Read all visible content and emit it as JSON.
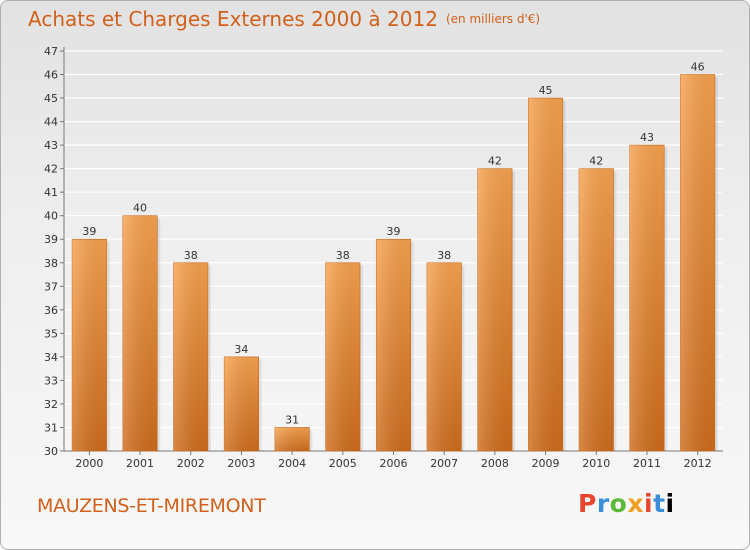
{
  "header": {
    "title": "Achats et Charges Externes 2000 à 2012",
    "unit": "(en milliers d'€)"
  },
  "footer": {
    "commune": "MAUZENS-ET-MIREMONT",
    "logo_letters": [
      "P",
      "r",
      "o",
      "x",
      "i",
      "t",
      "i"
    ]
  },
  "chart_data": {
    "type": "bar",
    "title": "Achats et Charges Externes 2000 à 2012",
    "subtitle": "(en milliers d'€)",
    "xlabel": "",
    "ylabel": "",
    "categories": [
      "2000",
      "2001",
      "2002",
      "2003",
      "2004",
      "2005",
      "2006",
      "2007",
      "2008",
      "2009",
      "2010",
      "2011",
      "2012"
    ],
    "values": [
      39,
      40,
      38,
      34,
      31,
      38,
      39,
      38,
      42,
      45,
      42,
      43,
      46
    ],
    "ylim": [
      30,
      47
    ],
    "yticks": [
      30,
      31,
      32,
      33,
      34,
      35,
      36,
      37,
      38,
      39,
      40,
      41,
      42,
      43,
      44,
      45,
      46,
      47
    ],
    "grid": true,
    "bar_color": "#f08c30",
    "legend": "none"
  }
}
